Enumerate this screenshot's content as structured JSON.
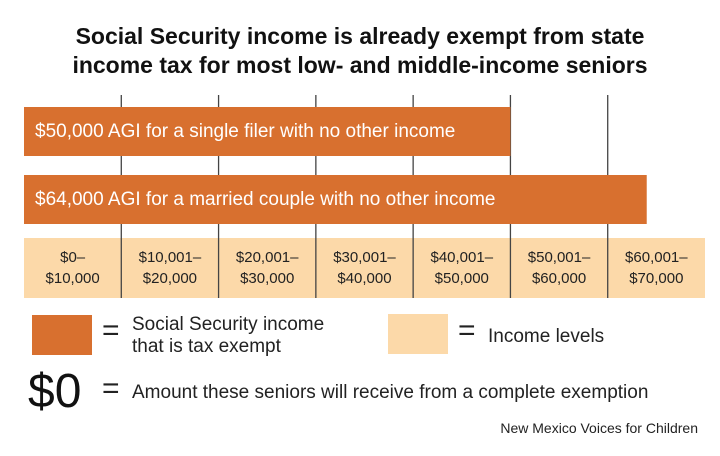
{
  "title_lines": [
    "Social Security income is already exempt from state",
    "income tax for most low- and middle-income seniors"
  ],
  "colors": {
    "exempt": "#d8702f",
    "income": "#fcd9a9",
    "grid": "#444444"
  },
  "chart_data": {
    "type": "bar",
    "orientation": "horizontal",
    "title": "Social Security income is already exempt from state income tax for most low- and middle-income seniors",
    "xlim": [
      0,
      70000
    ],
    "series": [
      {
        "label": "$50,000 AGI for a single filer with no other income",
        "value": 50000
      },
      {
        "label": "$64,000 AGI for a married couple with no other income",
        "value": 64000
      }
    ],
    "bands": [
      {
        "top": "$0–",
        "bottom": "$10,000"
      },
      {
        "top": "$10,001–",
        "bottom": "$20,000"
      },
      {
        "top": "$20,001–",
        "bottom": "$30,000"
      },
      {
        "top": "$30,001–",
        "bottom": "$40,000"
      },
      {
        "top": "$40,001–",
        "bottom": "$50,000"
      },
      {
        "top": "$50,001–",
        "bottom": "$60,000"
      },
      {
        "top": "$60,001–",
        "bottom": "$70,000"
      }
    ]
  },
  "legend": {
    "eq": "=",
    "exempt_lines": [
      "Social Security income",
      "that is tax exempt"
    ],
    "income": "Income levels",
    "zero_symbol": "$0",
    "zero_text": "Amount these seniors will receive from a complete exemption"
  },
  "source": "New Mexico Voices for Children"
}
